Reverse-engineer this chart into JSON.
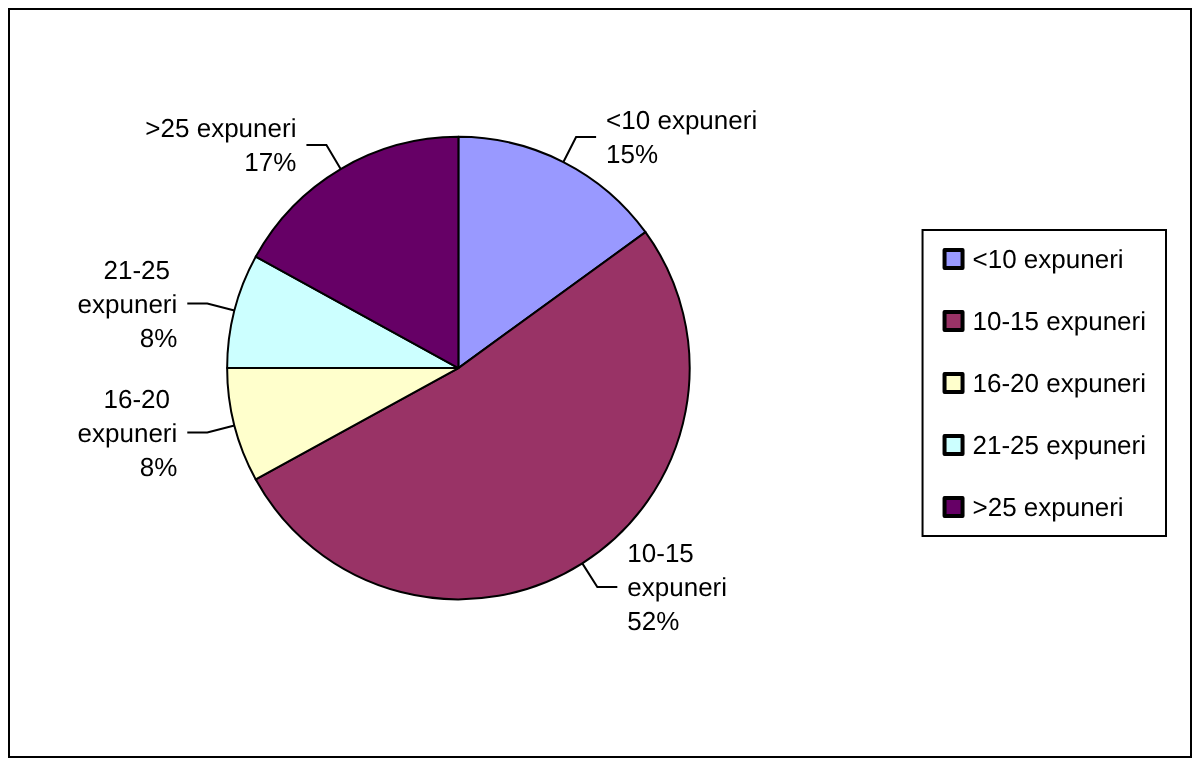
{
  "chart_data": {
    "type": "pie",
    "categories": [
      "<10 expuneri",
      "10-15 expuneri",
      "16-20 expuneri",
      "21-25 expuneri",
      ">25 expuneri"
    ],
    "values": [
      15,
      52,
      8,
      8,
      17
    ],
    "value_labels": [
      "15%",
      "52%",
      "8%",
      "8%",
      "17%"
    ],
    "colors": [
      "#9999ff",
      "#993366",
      "#ffffcc",
      "#ccffff",
      "#660066"
    ],
    "legend": "right"
  }
}
